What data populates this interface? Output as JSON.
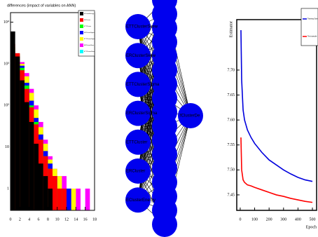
{
  "chart_data": [
    {
      "type": "histogram",
      "title": "differences (impact of variables on ANN)",
      "log_y": true,
      "bins": [
        0,
        1,
        2,
        3,
        4,
        5,
        6,
        7,
        8,
        9,
        10,
        11,
        12,
        13,
        14,
        15,
        16,
        17,
        18
      ],
      "series": [
        {
          "name": "EClusterEnergy",
          "color": "#000000",
          "values": [
            6000,
            1500,
            400,
            120,
            40,
            12,
            4,
            2,
            1,
            0,
            0,
            0,
            0,
            0,
            0,
            0,
            0,
            0
          ]
        },
        {
          "name": "ERCluster",
          "color": "#ff0000",
          "values": [
            3000,
            1800,
            700,
            250,
            90,
            35,
            15,
            6,
            3,
            2,
            1,
            1,
            0,
            0,
            0,
            0,
            0,
            0
          ]
        },
        {
          "name": "ETTCluster",
          "color": "#00ff00",
          "values": [
            2500,
            1700,
            800,
            300,
            100,
            40,
            15,
            6,
            3,
            1,
            1,
            0,
            0,
            0,
            0,
            0,
            0,
            0
          ]
        },
        {
          "name": "ERClusterSigma",
          "color": "#0000ff",
          "values": [
            2000,
            1600,
            900,
            350,
            130,
            50,
            20,
            8,
            4,
            2,
            1,
            1,
            1,
            0,
            0,
            0,
            0,
            0
          ]
        },
        {
          "name": "ETTClusterSigma",
          "color": "#ffff00",
          "values": [
            1200,
            1500,
            1000,
            500,
            200,
            80,
            30,
            12,
            5,
            3,
            2,
            1,
            1,
            1,
            0,
            0,
            0,
            0
          ]
        },
        {
          "name": "ERClusterSkew",
          "color": "#ff00ff",
          "values": [
            1000,
            1300,
            1100,
            600,
            250,
            100,
            40,
            15,
            6,
            3,
            2,
            2,
            1,
            1,
            1,
            0,
            1,
            0
          ]
        },
        {
          "name": "ETTClusterSkew",
          "color": "#00ffff",
          "values": [
            1500,
            1400,
            900,
            400,
            150,
            60,
            25,
            10,
            4,
            2,
            1,
            1,
            1,
            0,
            0,
            0,
            0,
            0
          ]
        }
      ],
      "xlim": [
        0,
        18
      ],
      "xticks": [
        0,
        2,
        4,
        6,
        8,
        10,
        12,
        14,
        16,
        18
      ],
      "ylim": [
        0.3,
        17000
      ],
      "yticks": [
        1,
        10,
        {
          "value": 100,
          "label": "10²"
        },
        {
          "value": 1000,
          "label": "10³"
        },
        {
          "value": 10000,
          "label": "10⁴"
        }
      ]
    },
    {
      "type": "line",
      "xlabel": "Epoch",
      "ylabel": "Estimator",
      "x": [
        5,
        10,
        20,
        30,
        50,
        75,
        100,
        150,
        200,
        250,
        300,
        350,
        400,
        450,
        500
      ],
      "series": [
        {
          "name": "Training Sample",
          "color": "#0000dd",
          "values": [
            7.78,
            7.68,
            7.62,
            7.6,
            7.58,
            7.565,
            7.553,
            7.535,
            7.52,
            7.51,
            7.5,
            7.492,
            7.485,
            7.48,
            7.477
          ]
        },
        {
          "name": "Test sample",
          "color": "#ff0000",
          "values": [
            7.565,
            7.5,
            7.48,
            7.475,
            7.47,
            7.468,
            7.465,
            7.46,
            7.455,
            7.45,
            7.447,
            7.443,
            7.44,
            7.437,
            7.435
          ]
        }
      ],
      "xlim": [
        -24,
        529
      ],
      "xticks": [
        0,
        100,
        200,
        300,
        400,
        500
      ],
      "ylim": [
        7.419,
        7.801
      ],
      "yticks": [
        7.45,
        {
          "value": 7.5,
          "label": "7.50"
        },
        7.55,
        {
          "value": 7.6,
          "label": "7.60"
        },
        7.65,
        {
          "value": 7.7,
          "label": "7.70"
        }
      ]
    }
  ],
  "network": {
    "inputs": [
      "ETTClusterSkew",
      "ERClusterSkew",
      "ETTClusterSigma",
      "ERClusterSigma",
      "ETTCluster",
      "ERCluster",
      "EClusterEnergy"
    ],
    "output": "fClusterDe"
  }
}
